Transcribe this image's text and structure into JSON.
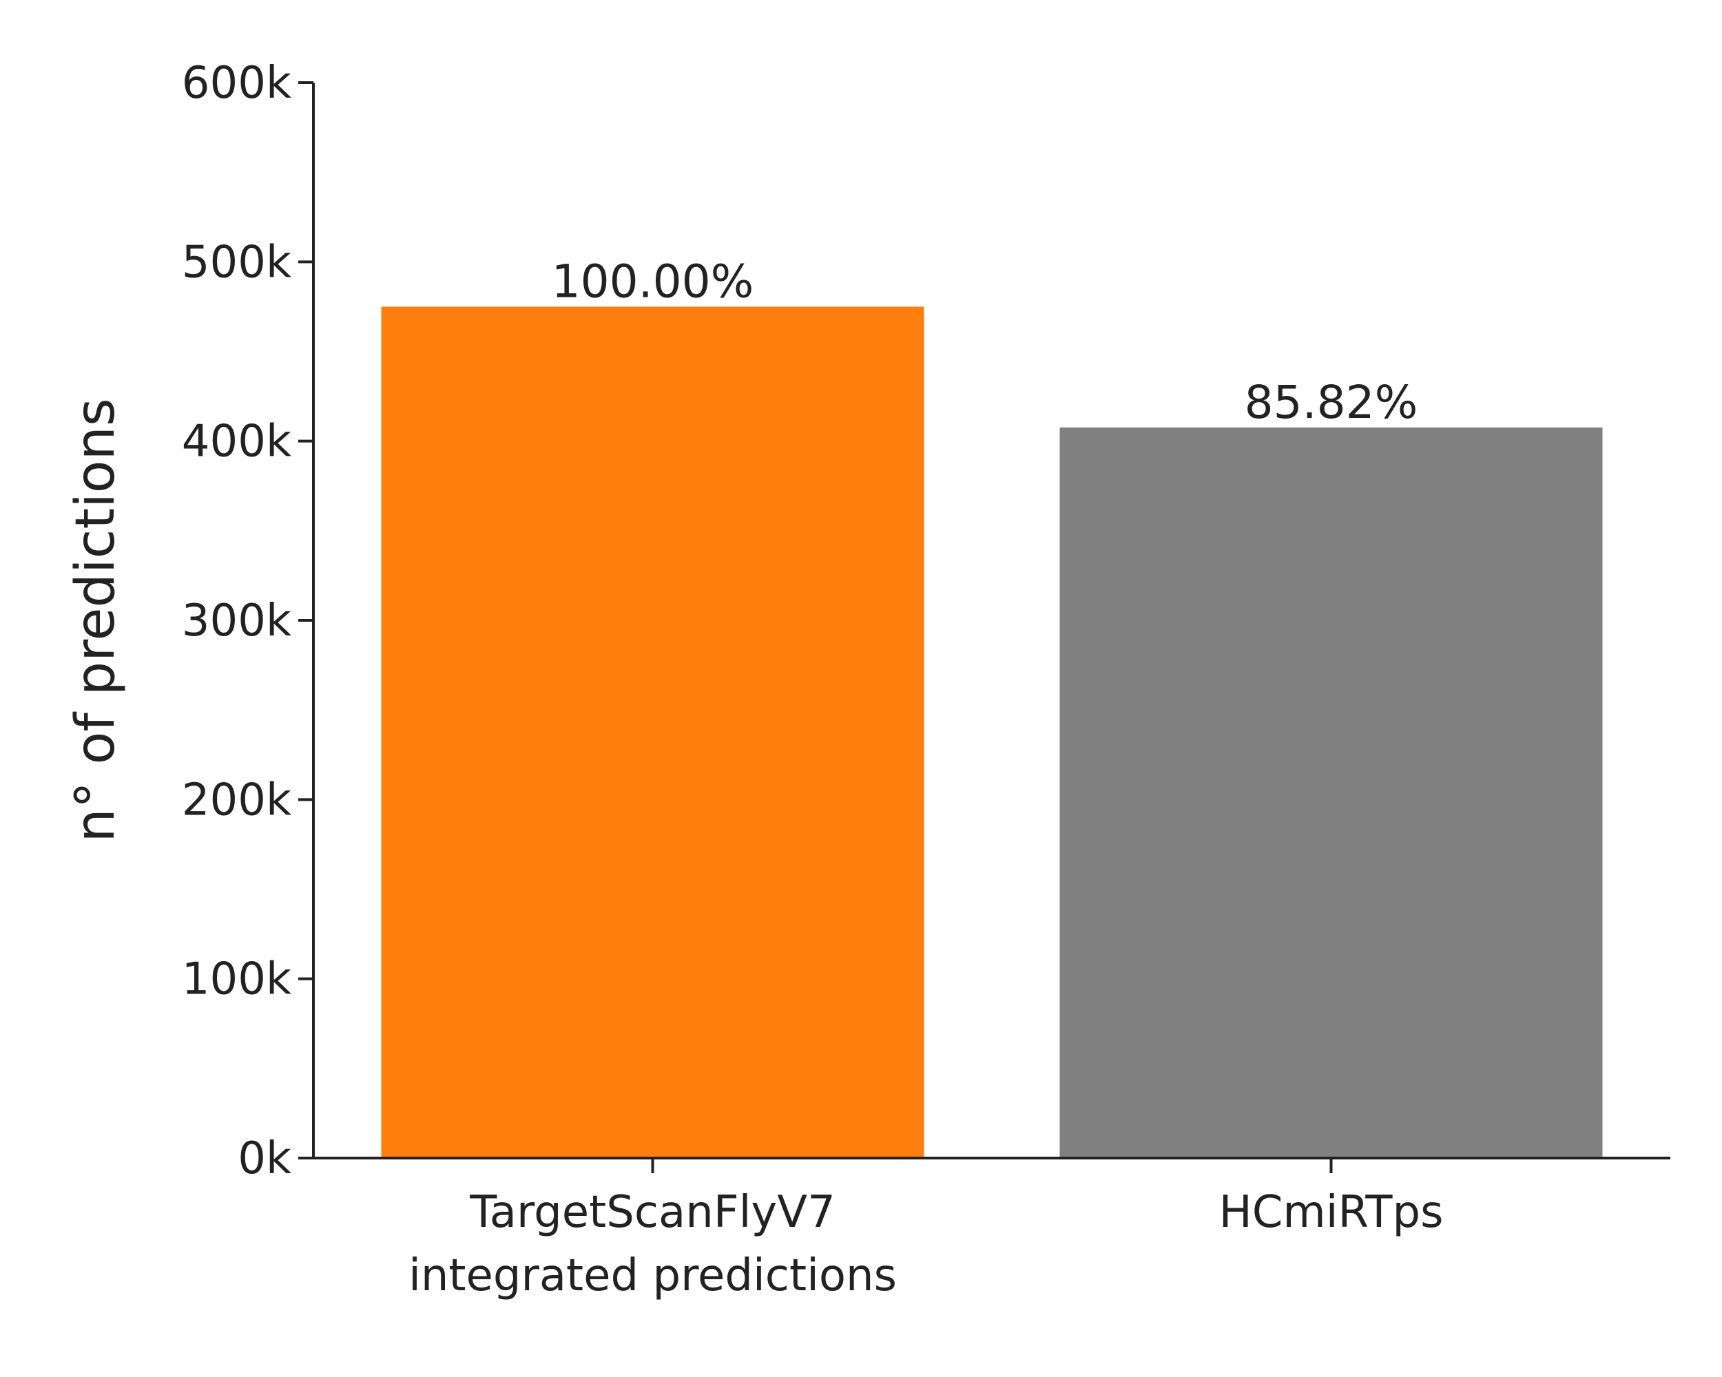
{
  "chart_data": {
    "type": "bar",
    "title": "",
    "xlabel": "",
    "ylabel": "n° of predictions",
    "ylim": [
      0,
      600000
    ],
    "yticks": [
      {
        "value": 0,
        "label": "0k"
      },
      {
        "value": 100000,
        "label": "100k"
      },
      {
        "value": 200000,
        "label": "200k"
      },
      {
        "value": 300000,
        "label": "300k"
      },
      {
        "value": 400000,
        "label": "400k"
      },
      {
        "value": 500000,
        "label": "500k"
      },
      {
        "value": 600000,
        "label": "600k"
      }
    ],
    "categories": [
      {
        "line1": "TargetScanFlyV7",
        "line2": "integrated predictions"
      },
      {
        "line1": "HCmiRTps",
        "line2": ""
      }
    ],
    "values": [
      475000,
      407600
    ],
    "data_labels": [
      "100.00%",
      "85.82%"
    ],
    "colors": [
      "#ff7f0e",
      "#808080"
    ],
    "grid": false,
    "legend": "none"
  }
}
